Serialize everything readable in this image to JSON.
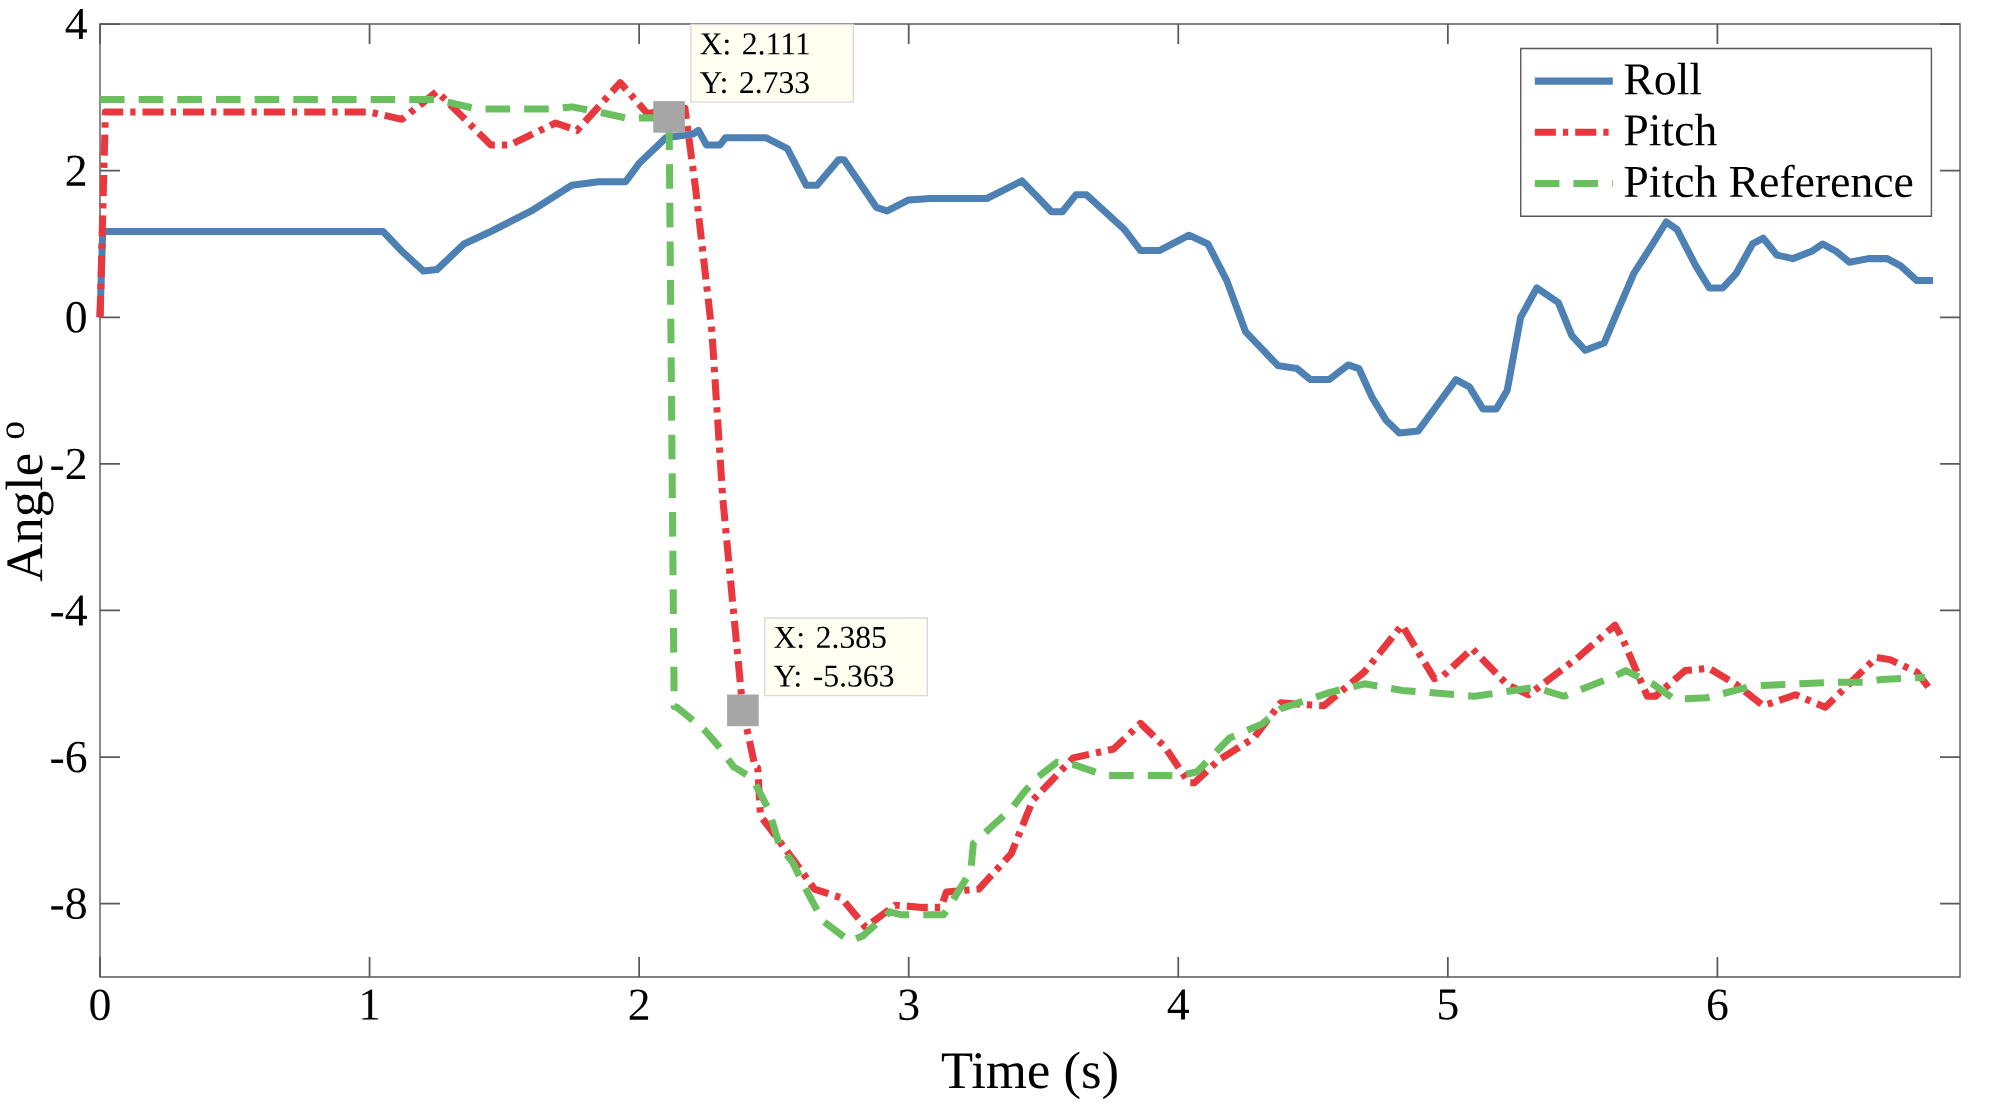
{
  "chart_data": {
    "type": "line",
    "xlabel": "Time (s)",
    "ylabel": "Angle $^{o}$",
    "xlim": [
      0,
      6.9
    ],
    "ylim": [
      -9,
      4
    ],
    "xticks": [
      0,
      1,
      2,
      3,
      4,
      5,
      6
    ],
    "yticks": [
      -8,
      -6,
      -4,
      -2,
      0,
      2,
      4
    ],
    "legend": "top right",
    "grid": false,
    "series": [
      {
        "name": "Roll",
        "color": "#4d80b3",
        "line_style": "solid",
        "x": [
          0,
          0.01,
          1.05,
          1.12,
          1.2,
          1.25,
          1.35,
          1.45,
          1.6,
          1.75,
          1.85,
          1.95,
          2.0,
          2.1,
          2.2,
          2.22,
          2.25,
          2.3,
          2.32,
          2.47,
          2.55,
          2.62,
          2.66,
          2.74,
          2.76,
          2.88,
          2.92,
          3.0,
          3.08,
          3.29,
          3.42,
          3.53,
          3.57,
          3.62,
          3.66,
          3.8,
          3.86,
          3.93,
          4.04,
          4.11,
          4.18,
          4.25,
          4.37,
          4.44,
          4.49,
          4.56,
          4.63,
          4.67,
          4.72,
          4.77,
          4.82,
          4.89,
          4.96,
          5.03,
          5.08,
          5.13,
          5.18,
          5.22,
          5.27,
          5.33,
          5.41,
          5.46,
          5.51,
          5.58,
          5.62,
          5.69,
          5.76,
          5.81,
          5.85,
          5.92,
          5.97,
          6.02,
          6.07,
          6.13,
          6.17,
          6.22,
          6.28,
          6.35,
          6.39,
          6.44,
          6.49,
          6.56,
          6.63,
          6.68,
          6.74,
          6.8
        ],
        "values": [
          0,
          1.17,
          1.17,
          0.9,
          0.63,
          0.65,
          1.0,
          1.17,
          1.45,
          1.8,
          1.85,
          1.85,
          2.1,
          2.45,
          2.5,
          2.55,
          2.35,
          2.35,
          2.45,
          2.45,
          2.3,
          1.8,
          1.8,
          2.15,
          2.15,
          1.5,
          1.45,
          1.6,
          1.62,
          1.62,
          1.86,
          1.44,
          1.44,
          1.67,
          1.67,
          1.2,
          0.91,
          0.91,
          1.12,
          1.0,
          0.5,
          -0.2,
          -0.66,
          -0.7,
          -0.85,
          -0.85,
          -0.65,
          -0.7,
          -1.1,
          -1.4,
          -1.58,
          -1.55,
          -1.2,
          -0.85,
          -0.95,
          -1.25,
          -1.25,
          -1.0,
          0,
          0.4,
          0.2,
          -0.25,
          -0.45,
          -0.35,
          0,
          0.6,
          1.0,
          1.3,
          1.2,
          0.7,
          0.4,
          0.4,
          0.6,
          1.0,
          1.08,
          0.85,
          0.8,
          0.9,
          1.0,
          0.9,
          0.75,
          0.8,
          0.8,
          0.7,
          0.5,
          0.5
        ]
      },
      {
        "name": "Pitch",
        "color": "#e8383d",
        "line_style": "dashdot",
        "x": [
          0,
          0.02,
          1.0,
          1.12,
          1.25,
          1.45,
          1.52,
          1.69,
          1.77,
          1.93,
          2.03,
          2.17,
          2.21,
          2.27,
          2.31,
          2.385,
          2.43,
          2.44,
          2.45,
          2.58,
          2.65,
          2.75,
          2.84,
          2.95,
          3.05,
          3.12,
          3.14,
          3.26,
          3.38,
          3.46,
          3.61,
          3.76,
          3.86,
          3.95,
          4.04,
          4.06,
          4.15,
          4.28,
          4.38,
          4.54,
          4.69,
          4.83,
          4.95,
          4.98,
          5.09,
          5.22,
          5.3,
          5.49,
          5.62,
          5.65,
          5.74,
          5.77,
          5.88,
          5.97,
          6.07,
          6.17,
          6.29,
          6.4,
          6.59,
          6.64,
          6.74,
          6.79
        ],
        "values": [
          0,
          2.8,
          2.8,
          2.7,
          3.08,
          2.35,
          2.35,
          2.65,
          2.55,
          3.2,
          2.78,
          2.85,
          1.74,
          -0.2,
          -2.46,
          -5.363,
          -6.13,
          -6.15,
          -6.8,
          -7.44,
          -7.8,
          -7.92,
          -8.32,
          -8.02,
          -8.05,
          -8.05,
          -7.84,
          -7.8,
          -7.32,
          -6.59,
          -6.01,
          -5.89,
          -5.54,
          -5.86,
          -6.35,
          -6.35,
          -6.04,
          -5.74,
          -5.26,
          -5.3,
          -4.84,
          -4.2,
          -4.93,
          -4.9,
          -4.52,
          -5.01,
          -5.15,
          -4.62,
          -4.2,
          -4.4,
          -5.17,
          -5.17,
          -4.82,
          -4.79,
          -5.01,
          -5.3,
          -5.15,
          -5.32,
          -4.64,
          -4.67,
          -4.84,
          -5.08
        ]
      },
      {
        "name": "Pitch Reference",
        "color": "#6abf5e",
        "line_style": "dashed",
        "x": [
          0,
          1.12,
          1.25,
          1.4,
          1.67,
          1.75,
          1.85,
          1.95,
          2.05,
          2.111,
          2.13,
          2.14,
          2.24,
          2.29,
          2.35,
          2.42,
          2.48,
          2.52,
          2.57,
          2.62,
          2.68,
          2.78,
          2.83,
          2.93,
          2.97,
          3.13,
          3.23,
          3.24,
          3.31,
          3.38,
          3.43,
          3.48,
          3.55,
          3.61,
          3.73,
          4.01,
          4.07,
          4.19,
          4.31,
          4.38,
          4.56,
          4.69,
          4.83,
          5.1,
          5.32,
          5.43,
          5.61,
          5.66,
          5.76,
          5.84,
          5.96,
          6.13,
          6.42,
          6.54,
          6.61,
          6.77
        ],
        "values": [
          2.97,
          2.97,
          2.97,
          2.84,
          2.84,
          2.87,
          2.8,
          2.72,
          2.72,
          2.733,
          -5.31,
          -5.32,
          -5.62,
          -5.83,
          -6.13,
          -6.29,
          -6.71,
          -7.2,
          -7.44,
          -7.81,
          -8.23,
          -8.51,
          -8.44,
          -8.11,
          -8.15,
          -8.15,
          -7.56,
          -7.18,
          -6.94,
          -6.71,
          -6.47,
          -6.27,
          -6.07,
          -6.1,
          -6.25,
          -6.25,
          -6.2,
          -5.74,
          -5.55,
          -5.34,
          -5.12,
          -5.0,
          -5.09,
          -5.17,
          -5.05,
          -5.17,
          -4.91,
          -4.82,
          -5.0,
          -5.21,
          -5.19,
          -5.03,
          -4.98,
          -4.98,
          -4.94,
          -4.91
        ]
      }
    ],
    "annotations": [
      {
        "text": "X: 2.111 Y: 2.733",
        "x": 2.111,
        "y": 2.733
      },
      {
        "text": "X: 2.385 Y: -5.363",
        "x": 2.385,
        "y": -5.363
      }
    ]
  }
}
